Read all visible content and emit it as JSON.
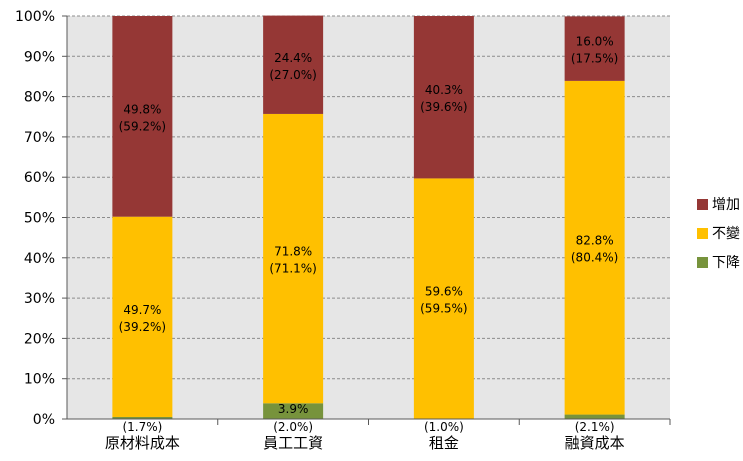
{
  "chart_data": {
    "type": "bar",
    "stacked": true,
    "categories": [
      "原材料成本",
      "員工工資",
      "租金",
      "融資成本"
    ],
    "series": [
      {
        "name": "下降",
        "color": "#77933c",
        "values": [
          0.5,
          3.9,
          0.1,
          1.1
        ],
        "labels": [
          "0.5%",
          "3.9%",
          "0.1%",
          "1.1%"
        ],
        "sublabels": [
          "(1.7%)",
          "(2.0%)",
          "(1.0%)",
          "(2.1%)"
        ]
      },
      {
        "name": "不變",
        "color": "#ffc000",
        "values": [
          49.7,
          71.8,
          59.6,
          82.8
        ],
        "labels": [
          "49.7%",
          "71.8%",
          "59.6%",
          "82.8%"
        ],
        "sublabels": [
          "(39.2%)",
          "(71.1%)",
          "(59.5%)",
          "(80.4%)"
        ]
      },
      {
        "name": "增加",
        "color": "#953735",
        "values": [
          49.8,
          24.4,
          40.3,
          16.0
        ],
        "labels": [
          "49.8%",
          "24.4%",
          "40.3%",
          "16.0%"
        ],
        "sublabels": [
          "(59.2%)",
          "(27.0%)",
          "(39.6%)",
          "(17.5%)"
        ]
      }
    ],
    "yticks": [
      "0%",
      "10%",
      "20%",
      "30%",
      "40%",
      "50%",
      "60%",
      "70%",
      "80%",
      "90%",
      "100%"
    ],
    "ylim": [
      0,
      100
    ],
    "grid": true,
    "legend": {
      "position": "right",
      "order": [
        "增加",
        "不變",
        "下降"
      ]
    },
    "plot_background": "#e6e6e6"
  }
}
